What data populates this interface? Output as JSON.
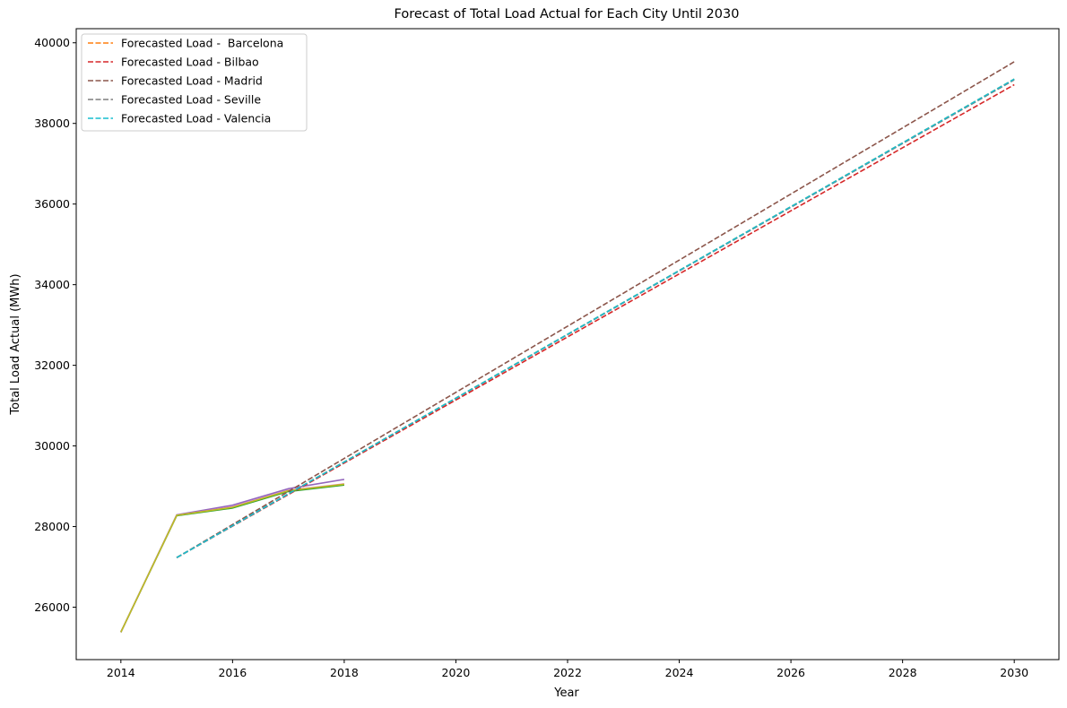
{
  "chart_data": {
    "type": "line",
    "title": "Forecast of Total Load Actual for Each City Until 2030",
    "xlabel": "Year",
    "ylabel": "Total Load Actual (MWh)",
    "xlim": [
      2013.2,
      2030.8
    ],
    "ylim": [
      24700,
      40350
    ],
    "xticks": [
      2014,
      2016,
      2018,
      2020,
      2022,
      2024,
      2026,
      2028,
      2030
    ],
    "yticks": [
      26000,
      28000,
      30000,
      32000,
      34000,
      36000,
      38000,
      40000
    ],
    "grid": false,
    "legend_position": "top-left",
    "actual_series": [
      {
        "color": "#1f77b4",
        "x": [
          2014,
          2015,
          2016,
          2017,
          2018
        ],
        "y": [
          25380,
          28280,
          28470,
          28880,
          29040
        ]
      },
      {
        "color": "#2ca02c",
        "x": [
          2014,
          2015,
          2016,
          2017,
          2018
        ],
        "y": [
          25380,
          28270,
          28460,
          28870,
          29030
        ]
      },
      {
        "color": "#9467bd",
        "x": [
          2014,
          2015,
          2016,
          2017,
          2018
        ],
        "y": [
          25380,
          28290,
          28530,
          28940,
          29170
        ]
      },
      {
        "color": "#e377c2",
        "x": [
          2014,
          2015,
          2016,
          2017,
          2018
        ],
        "y": [
          25380,
          28280,
          28490,
          28900,
          29060
        ]
      },
      {
        "color": "#bcbd22",
        "x": [
          2014,
          2015,
          2016,
          2017,
          2018
        ],
        "y": [
          25380,
          28280,
          28480,
          28890,
          29050
        ]
      }
    ],
    "series": [
      {
        "name": "Forecasted Load -  Barcelona",
        "color": "#ff7f0e",
        "x": [
          2015,
          2030
        ],
        "y": [
          27230,
          39100
        ]
      },
      {
        "name": "Forecasted Load - Bilbao",
        "color": "#d62728",
        "x": [
          2015,
          2030
        ],
        "y": [
          27230,
          38960
        ]
      },
      {
        "name": "Forecasted Load - Madrid",
        "color": "#8c564b",
        "x": [
          2015,
          2030
        ],
        "y": [
          27230,
          39530
        ]
      },
      {
        "name": "Forecasted Load - Seville",
        "color": "#7f7f7f",
        "x": [
          2015,
          2030
        ],
        "y": [
          27230,
          39080
        ]
      },
      {
        "name": "Forecasted Load - Valencia",
        "color": "#17becf",
        "x": [
          2015,
          2030
        ],
        "y": [
          27230,
          39100
        ]
      }
    ]
  }
}
